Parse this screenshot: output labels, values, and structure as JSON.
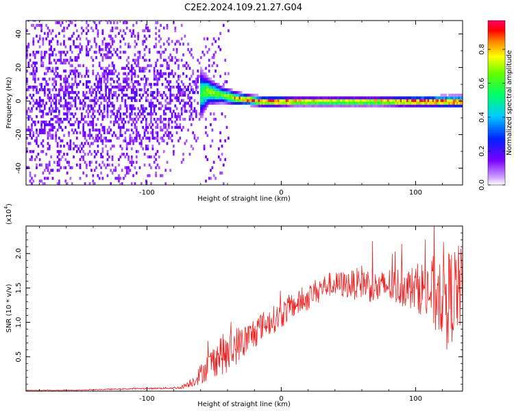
{
  "title": "C2E2.2024.109.21.27.G04",
  "colors": {
    "snr_line": "#ee2222",
    "axis": "#000000"
  },
  "chart_data": [
    {
      "type": "heatmap",
      "xlabel": "Height of straight line (km)",
      "ylabel": "Frequency (Hz)",
      "xlim": [
        -190,
        135
      ],
      "ylim": [
        -50,
        48
      ],
      "x_ticks": [
        -100,
        0,
        100
      ],
      "x_tick_labels": [
        "-100",
        "0",
        "100"
      ],
      "y_ticks": [
        -40,
        -20,
        0,
        20,
        40
      ],
      "y_tick_labels": [
        "-40",
        "-20",
        "0",
        "20",
        "40"
      ],
      "grid": false,
      "colorbar": {
        "label": "Normalized spectral amplitude",
        "range": [
          0.0,
          0.97
        ],
        "ticks": [
          0.0,
          0.2,
          0.4,
          0.6,
          0.8
        ],
        "tick_labels": [
          "0.0",
          "0.2",
          "0.4",
          "0.6",
          "0.8"
        ],
        "colormap": "rainbow (white → violet → blue → cyan → green → yellow → orange → red → magenta)"
      },
      "description_of_pattern": "Scattered low-amplitude violet noise across all frequencies for heights below about -60 km, concentrating into a narrow high-amplitude band near 0 Hz from about -60 km to 135 km.",
      "band_profile": {
        "x": [
          -190,
          -150,
          -120,
          -100,
          -80,
          -65,
          -55,
          -45,
          -35,
          -25,
          -15,
          -5,
          10,
          40,
          70,
          100,
          135
        ],
        "center_freq_hz": [
          0,
          0,
          3,
          2,
          1,
          2,
          5,
          3,
          1,
          0,
          -1,
          -1,
          -1,
          -1,
          -1,
          -1,
          -1
        ],
        "half_width_hz": [
          48,
          48,
          45,
          40,
          30,
          20,
          8,
          5,
          4,
          3,
          3,
          3,
          2.5,
          2.5,
          2.5,
          3,
          3.5
        ],
        "peak_amplitude": [
          0.1,
          0.12,
          0.15,
          0.18,
          0.25,
          0.45,
          0.7,
          0.65,
          0.8,
          0.95,
          0.92,
          0.95,
          0.9,
          0.85,
          0.88,
          0.95,
          0.97
        ]
      }
    },
    {
      "type": "line",
      "xlabel": "Height of straight line (km)",
      "ylabel": "SNR (10 * v/v)",
      "y_scale_note": "(x10",
      "y_scale_exponent": "4",
      "xlim": [
        -190,
        135
      ],
      "ylim": [
        0,
        24000
      ],
      "x_ticks": [
        -100,
        0,
        100
      ],
      "x_tick_labels": [
        "-100",
        "0",
        "100"
      ],
      "y_ticks": [
        5000,
        10000,
        15000,
        20000
      ],
      "y_tick_labels": [
        "0.5",
        "1.0",
        "1.5",
        "2.0"
      ],
      "grid": false,
      "series": [
        {
          "color": "#ee2222",
          "x": [
            -190,
            -170,
            -150,
            -130,
            -110,
            -90,
            -75,
            -65,
            -60,
            -55,
            -50,
            -45,
            -40,
            -35,
            -30,
            -25,
            -20,
            -15,
            -10,
            -5,
            0,
            5,
            10,
            15,
            20,
            25,
            30,
            35,
            40,
            45,
            50,
            55,
            60,
            65,
            70,
            75,
            80,
            85,
            90,
            95,
            100,
            105,
            110,
            115,
            120,
            125,
            130,
            135
          ],
          "values": [
            100,
            120,
            150,
            250,
            350,
            400,
            500,
            1500,
            2500,
            3500,
            4500,
            5500,
            5000,
            6500,
            7000,
            7500,
            8500,
            9500,
            10000,
            10500,
            11000,
            12000,
            12500,
            13000,
            13500,
            14500,
            15000,
            15500,
            15500,
            15500,
            15500,
            15500,
            16000,
            15500,
            15000,
            15000,
            15500,
            15000,
            15500,
            15000,
            15000,
            15000,
            14500,
            14000,
            15000,
            13500,
            14500,
            15000
          ],
          "noise_amplitude": [
            50,
            50,
            60,
            80,
            100,
            120,
            200,
            800,
            1500,
            2000,
            2500,
            3000,
            3000,
            3000,
            2500,
            2500,
            2500,
            2000,
            2000,
            2000,
            2000,
            2000,
            1800,
            1800,
            1800,
            1800,
            1800,
            1800,
            1800,
            2000,
            2000,
            2200,
            2500,
            2500,
            2500,
            2500,
            2500,
            2800,
            3000,
            3000,
            3500,
            4000,
            5000,
            6000,
            7000,
            7000,
            7000,
            6000
          ]
        }
      ]
    }
  ]
}
